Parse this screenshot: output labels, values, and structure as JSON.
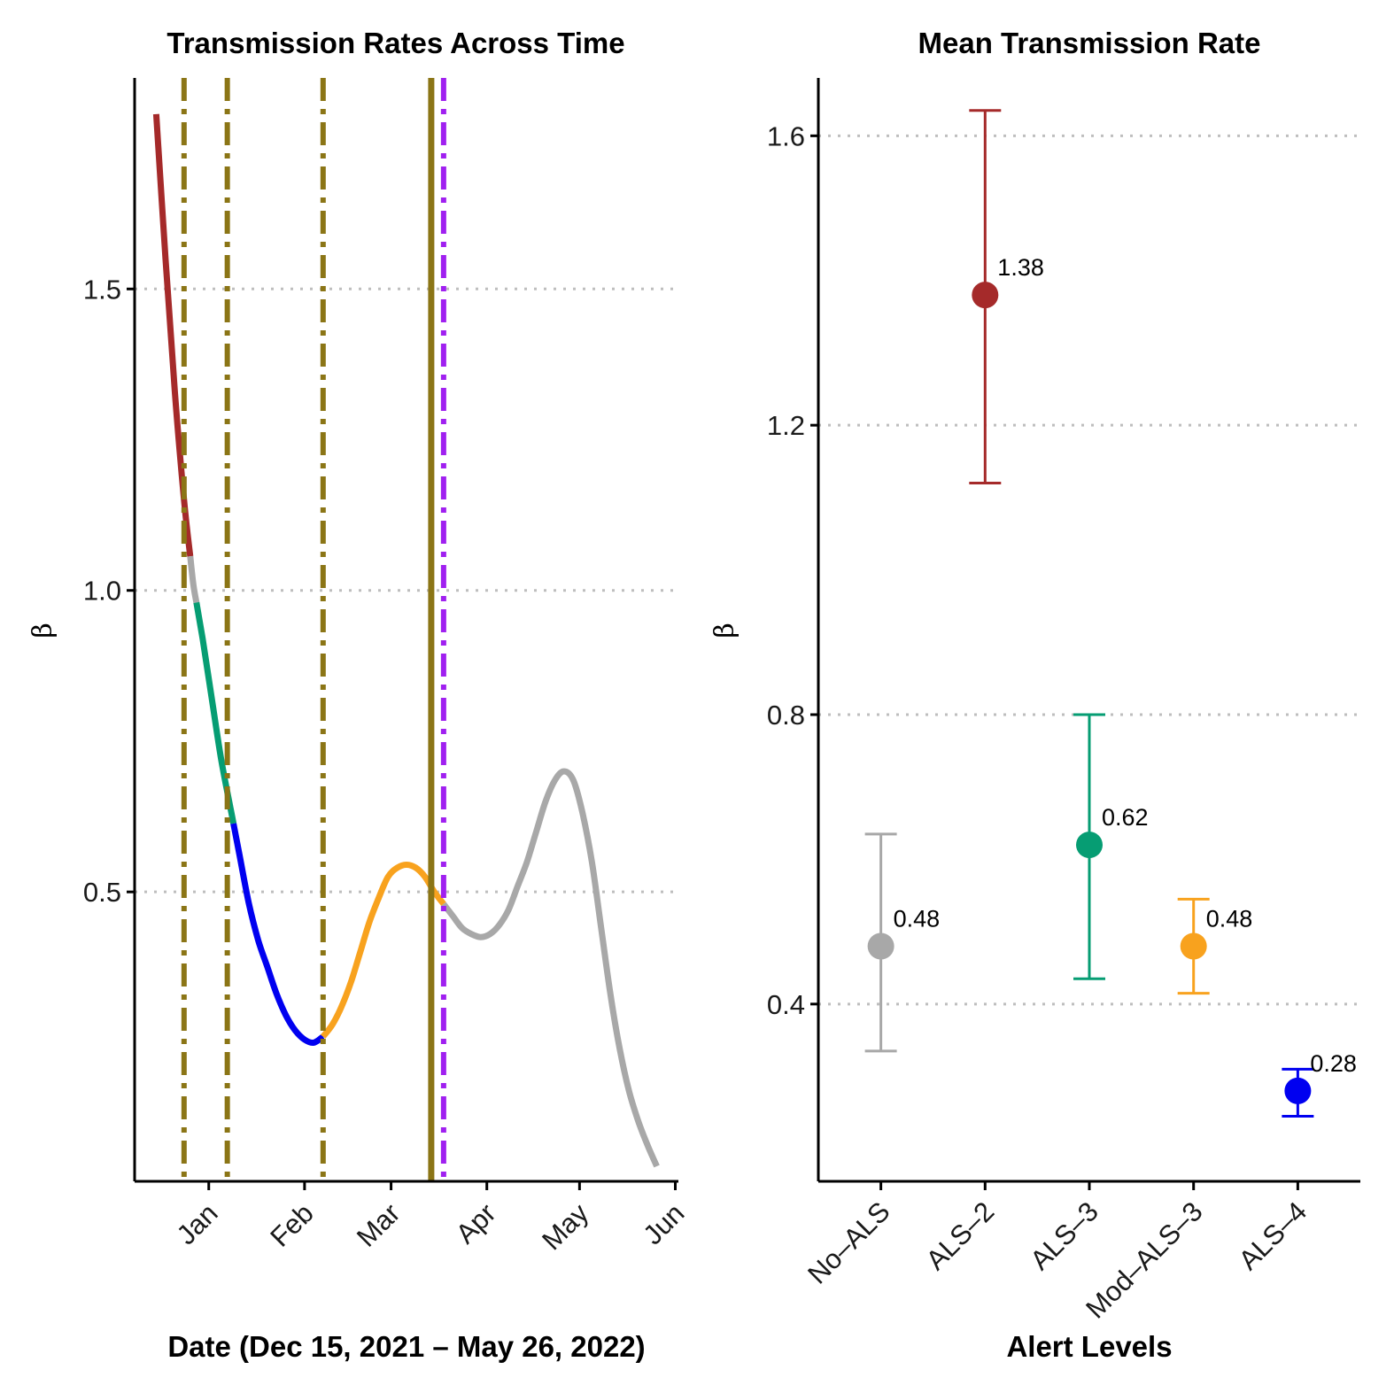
{
  "colors": {
    "no_als": "#A8A8A8",
    "als_2": "#A52A2A",
    "als_3": "#069D73",
    "mod_als_3": "#F8A21E",
    "als_4": "#0000F0",
    "event_line": "#8B7516",
    "purple_line": "#A020F0",
    "grid": "#BEBEBE"
  },
  "chart_data": [
    {
      "type": "line",
      "title": "Transmission Rates Across Time",
      "xlabel": "Date (Dec 15, 2021 – May 26, 2022)",
      "ylabel": "β",
      "x_range": [
        "2021-12-08",
        "2022-06-02"
      ],
      "ylim": [
        0.02,
        1.85
      ],
      "yticks": [
        0.5,
        1.0,
        1.5
      ],
      "ytick_labels": [
        "0.5",
        "1.0",
        "1.5"
      ],
      "xticks": [
        "2022-01-01",
        "2022-02-01",
        "2022-03-01",
        "2022-04-01",
        "2022-05-01",
        "2022-06-01"
      ],
      "xtick_labels": [
        "Jan",
        "Feb",
        "Mar",
        "Apr",
        "May",
        "Jun"
      ],
      "grid_y": true,
      "curve": {
        "x": [
          "2021-12-15",
          "2021-12-18",
          "2021-12-21",
          "2021-12-24",
          "2021-12-27",
          "2021-12-30",
          "2022-01-02",
          "2022-01-05",
          "2022-01-08",
          "2022-01-11",
          "2022-01-14",
          "2022-01-17",
          "2022-01-20",
          "2022-01-23",
          "2022-01-26",
          "2022-01-29",
          "2022-02-01",
          "2022-02-04",
          "2022-02-07",
          "2022-02-10",
          "2022-02-13",
          "2022-02-16",
          "2022-02-19",
          "2022-02-22",
          "2022-02-25",
          "2022-02-28",
          "2022-03-03",
          "2022-03-06",
          "2022-03-09",
          "2022-03-12",
          "2022-03-15",
          "2022-03-18",
          "2022-03-21",
          "2022-03-24",
          "2022-03-27",
          "2022-03-30",
          "2022-04-02",
          "2022-04-05",
          "2022-04-08",
          "2022-04-11",
          "2022-04-14",
          "2022-04-17",
          "2022-04-20",
          "2022-04-23",
          "2022-04-26",
          "2022-04-29",
          "2022-05-02",
          "2022-05-05",
          "2022-05-08",
          "2022-05-11",
          "2022-05-14",
          "2022-05-17",
          "2022-05-20",
          "2022-05-23",
          "2022-05-26"
        ],
        "y": [
          1.79,
          1.55,
          1.33,
          1.15,
          1.01,
          0.92,
          0.82,
          0.72,
          0.64,
          0.56,
          0.48,
          0.42,
          0.375,
          0.33,
          0.295,
          0.27,
          0.255,
          0.25,
          0.26,
          0.28,
          0.31,
          0.35,
          0.4,
          0.45,
          0.49,
          0.525,
          0.54,
          0.545,
          0.54,
          0.525,
          0.5,
          0.48,
          0.46,
          0.44,
          0.43,
          0.425,
          0.43,
          0.445,
          0.47,
          0.51,
          0.55,
          0.6,
          0.65,
          0.685,
          0.7,
          0.685,
          0.63,
          0.55,
          0.44,
          0.33,
          0.24,
          0.17,
          0.12,
          0.08,
          0.045
        ],
        "segments": [
          {
            "from": "2021-12-15",
            "to": "2021-12-26",
            "color_key": "als_2"
          },
          {
            "from": "2021-12-26",
            "to": "2021-12-28",
            "color_key": "no_als"
          },
          {
            "from": "2021-12-28",
            "to": "2022-01-09",
            "color_key": "als_3"
          },
          {
            "from": "2022-01-09",
            "to": "2022-02-07",
            "color_key": "als_4"
          },
          {
            "from": "2022-02-07",
            "to": "2022-03-18",
            "color_key": "mod_als_3"
          },
          {
            "from": "2022-03-18",
            "to": "2022-05-26",
            "color_key": "no_als"
          }
        ]
      },
      "vlines": [
        {
          "x": "2021-12-24",
          "style": "dotdash",
          "color_key": "event_line"
        },
        {
          "x": "2022-01-07",
          "style": "dotdash",
          "color_key": "event_line"
        },
        {
          "x": "2022-02-07",
          "style": "dotdash",
          "color_key": "event_line"
        },
        {
          "x": "2022-03-14",
          "style": "solid",
          "color_key": "event_line"
        },
        {
          "x": "2022-03-18",
          "style": "dotdash",
          "color_key": "purple_line"
        }
      ]
    },
    {
      "type": "scatter",
      "title": "Mean Transmission Rate",
      "xlabel": "Alert Levels",
      "ylabel": "β",
      "ylim": [
        0.155,
        1.68
      ],
      "yticks": [
        0.4,
        0.8,
        1.2,
        1.6
      ],
      "ytick_labels": [
        "0.4",
        "0.8",
        "1.2",
        "1.6"
      ],
      "grid_y": true,
      "categories": [
        "No–ALS",
        "ALS–2",
        "ALS–3",
        "Mod–ALS–3",
        "ALS–4"
      ],
      "color_keys": [
        "no_als",
        "als_2",
        "als_3",
        "mod_als_3",
        "als_4"
      ],
      "means": [
        0.48,
        1.38,
        0.62,
        0.48,
        0.28
      ],
      "lower": [
        0.335,
        1.12,
        0.435,
        0.415,
        0.245
      ],
      "upper": [
        0.635,
        1.635,
        0.8,
        0.545,
        0.31
      ],
      "mean_labels": [
        "0.48",
        "1.38",
        "0.62",
        "0.48",
        "0.28"
      ]
    }
  ]
}
